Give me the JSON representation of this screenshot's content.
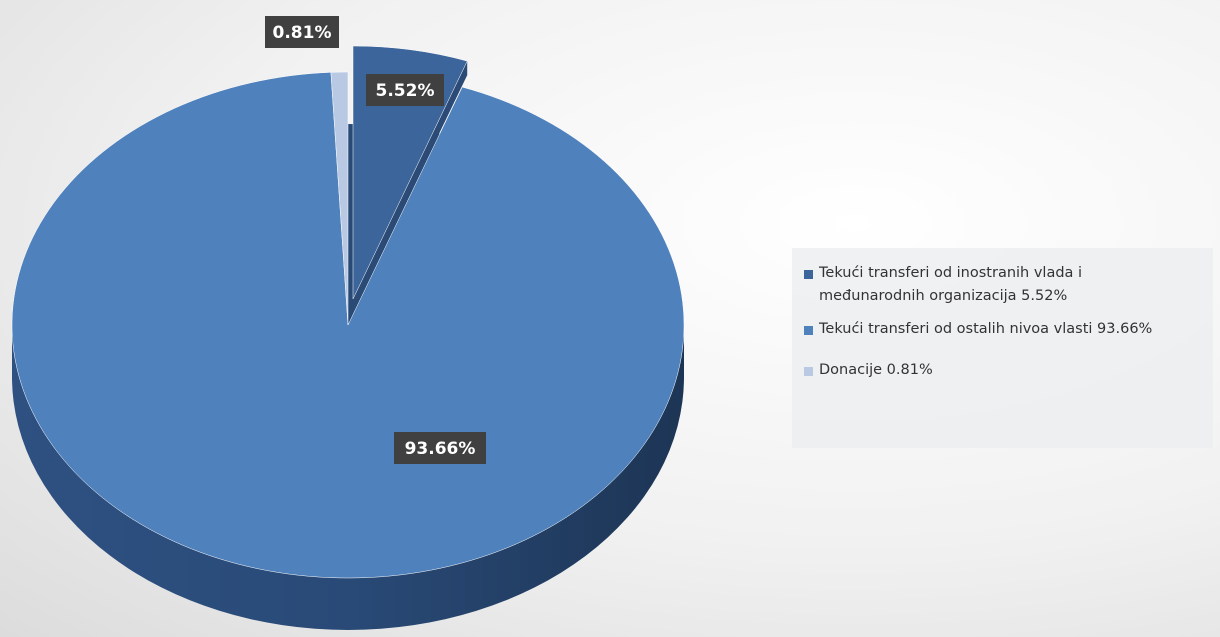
{
  "chart_data": {
    "type": "pie",
    "categories": [
      "Tekući transferi od inostranih vlada i međunarodnih organizacija 5.52%",
      "Tekući transferi od ostalih nivoa vlasti 93.66%",
      "Donacije 0.81%"
    ],
    "values": [
      5.52,
      93.66,
      0.81
    ],
    "value_labels": [
      "5.52%",
      "93.66%",
      "0.81%"
    ],
    "colors": [
      "#3c659b",
      "#4f81bd",
      "#b9c9e3"
    ],
    "legend": "right"
  }
}
